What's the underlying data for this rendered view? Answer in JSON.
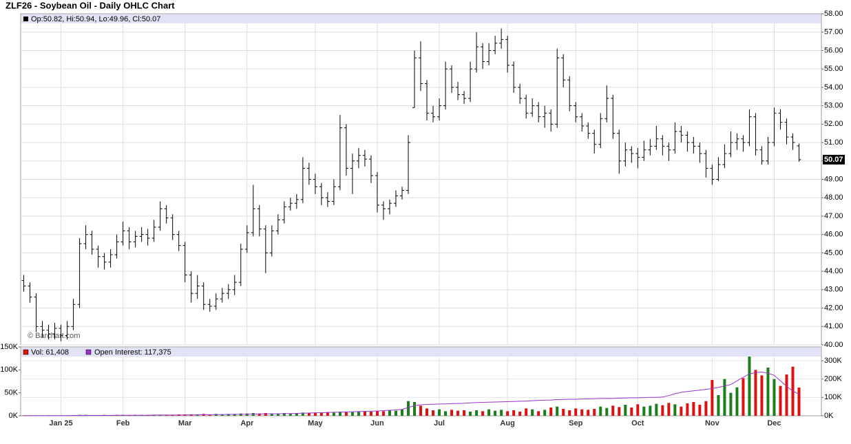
{
  "chart_data": [
    {
      "type": "ohlc",
      "title": "ZLF26 - Soybean Oil - Daily OHLC Chart",
      "legend_text": "Op:50.82, Hi:50.94, Lo:49.96, Cl:50.07",
      "last_label": "50.07",
      "watermark": "© Barchart.com",
      "color": "#000000",
      "open": [
        43.5,
        43.2,
        42.6,
        41.0,
        40.8,
        40.6,
        40.9,
        40.5,
        41.0,
        42.2,
        45.5,
        46.0,
        45.2,
        44.8,
        44.5,
        44.9,
        45.6,
        46.2,
        45.6,
        45.9,
        46.0,
        45.8,
        46.4,
        47.4,
        46.9,
        46.0,
        45.4,
        43.8,
        42.8,
        43.2,
        42.2,
        42.1,
        42.5,
        42.8,
        43.0,
        43.4,
        45.2,
        46.1,
        47.4,
        46.3,
        45.0,
        46.2,
        46.8,
        47.5,
        47.7,
        47.9,
        49.6,
        49.0,
        48.6,
        48.0,
        47.8,
        48.6,
        51.8,
        49.6,
        50.0,
        50.3,
        50.1,
        49.2,
        47.6,
        47.4,
        47.7,
        48.1,
        48.4,
        52.9,
        55.6,
        54.2,
        52.6,
        52.4,
        53.0,
        55.0,
        54.0,
        53.6,
        53.4,
        55.0,
        56.2,
        55.4,
        56.0,
        56.4,
        56.6,
        55.2,
        54.0,
        53.4,
        52.6,
        53.0,
        52.4,
        52.6,
        52.0,
        55.6,
        54.4,
        53.0,
        52.4,
        51.9,
        51.5,
        50.9,
        52.3,
        53.4,
        51.5,
        50.0,
        50.6,
        50.4,
        50.2,
        50.6,
        50.8,
        51.2,
        50.8,
        50.6,
        51.6,
        51.4,
        51.0,
        50.8,
        50.4,
        49.6,
        49.0,
        49.8,
        50.4,
        51.0,
        51.2,
        51.0,
        52.4,
        50.6,
        50.0,
        51.0,
        52.6,
        52.1,
        51.3,
        50.82
      ],
      "high": [
        43.8,
        43.4,
        42.8,
        41.3,
        41.1,
        41.2,
        41.1,
        41.3,
        42.5,
        45.8,
        46.5,
        46.2,
        45.4,
        45.0,
        45.2,
        46.0,
        46.7,
        46.4,
        46.2,
        46.4,
        46.3,
        46.8,
        47.8,
        47.6,
        47.1,
        46.2,
        45.6,
        44.0,
        43.8,
        43.4,
        42.5,
        42.8,
        43.1,
        43.3,
        43.8,
        45.5,
        46.5,
        48.7,
        47.6,
        46.5,
        46.5,
        47.1,
        47.8,
        48.0,
        48.2,
        50.2,
        49.9,
        49.3,
        48.8,
        48.3,
        49.0,
        52.5,
        52.0,
        50.4,
        50.7,
        50.6,
        50.3,
        49.4,
        47.8,
        47.9,
        48.4,
        48.6,
        51.4,
        56.0,
        56.5,
        54.4,
        53.0,
        53.4,
        55.4,
        55.2,
        54.3,
        53.8,
        55.4,
        57.0,
        56.4,
        56.4,
        56.8,
        57.2,
        56.8,
        55.4,
        54.2,
        53.6,
        53.4,
        53.2,
        53.0,
        52.8,
        56.1,
        55.8,
        54.6,
        53.2,
        52.6,
        52.1,
        51.7,
        52.6,
        54.1,
        53.6,
        51.7,
        51.0,
        50.8,
        50.7,
        51.1,
        51.2,
        51.9,
        51.4,
        51.0,
        52.1,
        51.9,
        51.6,
        51.3,
        51.0,
        50.6,
        49.8,
        50.2,
        50.9,
        51.6,
        51.5,
        51.4,
        52.8,
        52.6,
        50.8,
        51.3,
        52.9,
        52.8,
        52.3,
        51.5,
        50.94
      ],
      "low": [
        42.9,
        42.3,
        40.7,
        40.4,
        40.3,
        40.3,
        40.2,
        40.3,
        40.8,
        42.0,
        45.2,
        44.9,
        44.2,
        44.1,
        44.2,
        44.7,
        45.4,
        45.2,
        45.3,
        45.6,
        45.4,
        45.6,
        46.2,
        46.6,
        45.7,
        45.1,
        43.4,
        42.3,
        42.5,
        41.9,
        41.8,
        41.9,
        42.3,
        42.5,
        42.7,
        43.2,
        45.0,
        45.9,
        45.9,
        43.9,
        44.8,
        46.0,
        46.6,
        47.3,
        47.4,
        47.7,
        48.7,
        48.2,
        47.6,
        47.5,
        47.6,
        48.4,
        49.2,
        48.2,
        49.6,
        49.7,
        48.8,
        47.2,
        46.8,
        47.1,
        47.5,
        47.9,
        48.2,
        52.9,
        53.8,
        52.2,
        52.1,
        52.2,
        52.8,
        53.7,
        53.3,
        53.1,
        53.2,
        54.8,
        55.0,
        55.2,
        55.8,
        56.1,
        54.8,
        53.7,
        53.1,
        52.3,
        52.4,
        52.1,
        51.8,
        51.6,
        51.8,
        54.0,
        52.7,
        52.1,
        51.6,
        51.2,
        50.4,
        50.7,
        52.1,
        51.2,
        49.3,
        49.7,
        49.9,
        49.6,
        50.0,
        50.3,
        50.6,
        50.3,
        50.0,
        50.4,
        51.0,
        50.5,
        50.4,
        49.9,
        49.1,
        48.7,
        48.9,
        49.6,
        50.2,
        50.6,
        50.5,
        50.8,
        50.3,
        49.8,
        49.8,
        50.8,
        51.7,
        50.9,
        50.6,
        49.96
      ],
      "close": [
        43.2,
        42.6,
        41.0,
        40.8,
        40.6,
        40.9,
        40.5,
        41.0,
        42.2,
        45.5,
        46.0,
        45.2,
        44.8,
        44.5,
        44.9,
        45.6,
        46.2,
        45.6,
        45.9,
        46.0,
        45.8,
        46.4,
        47.4,
        46.9,
        46.0,
        45.4,
        43.8,
        42.8,
        43.2,
        42.2,
        42.1,
        42.5,
        42.8,
        43.0,
        43.4,
        45.2,
        46.1,
        47.4,
        46.3,
        45.0,
        46.2,
        46.8,
        47.5,
        47.7,
        47.9,
        49.6,
        49.0,
        48.6,
        48.0,
        47.8,
        48.6,
        51.8,
        49.6,
        50.0,
        50.3,
        50.1,
        49.2,
        47.6,
        47.4,
        47.7,
        48.1,
        48.4,
        51.0,
        55.6,
        54.2,
        52.6,
        52.4,
        53.0,
        55.0,
        54.0,
        53.6,
        53.4,
        55.0,
        56.2,
        55.4,
        56.0,
        56.4,
        56.6,
        55.2,
        54.0,
        53.4,
        52.6,
        53.0,
        52.4,
        52.6,
        52.0,
        55.6,
        54.4,
        53.0,
        52.4,
        51.9,
        51.5,
        50.9,
        52.3,
        53.4,
        51.5,
        50.0,
        50.6,
        50.4,
        50.2,
        50.6,
        50.8,
        51.2,
        50.8,
        50.6,
        51.6,
        51.4,
        51.0,
        50.8,
        50.4,
        49.6,
        49.0,
        49.8,
        50.4,
        51.0,
        51.2,
        51.0,
        52.4,
        50.6,
        50.0,
        51.0,
        52.6,
        52.1,
        51.3,
        51.0,
        50.07
      ],
      "ylim": [
        40,
        58
      ],
      "yticks": [
        {
          "value": 40,
          "label": "40.00"
        },
        {
          "value": 41,
          "label": "41.00"
        },
        {
          "value": 42,
          "label": "42.00"
        },
        {
          "value": 43,
          "label": "43.00"
        },
        {
          "value": 44,
          "label": "44.00"
        },
        {
          "value": 45,
          "label": "45.00"
        },
        {
          "value": 46,
          "label": "46.00"
        },
        {
          "value": 47,
          "label": "47.00"
        },
        {
          "value": 48,
          "label": "48.00"
        },
        {
          "value": 49,
          "label": "49.00"
        },
        {
          "value": 50,
          "label": "50.00"
        },
        {
          "value": 51,
          "label": "51.00"
        },
        {
          "value": 52,
          "label": "52.00"
        },
        {
          "value": 53,
          "label": "53.00"
        },
        {
          "value": 54,
          "label": "54.00"
        },
        {
          "value": 55,
          "label": "55.00"
        },
        {
          "value": 56,
          "label": "56.00"
        },
        {
          "value": 57,
          "label": "57.00"
        },
        {
          "value": 58,
          "label": "58.00"
        }
      ],
      "grid": true
    },
    {
      "type": "bar",
      "categories": [
        null,
        null,
        null,
        null,
        null,
        null,
        "Jan 25",
        null,
        null,
        null,
        null,
        null,
        null,
        null,
        null,
        null,
        "Feb",
        null,
        null,
        null,
        null,
        null,
        null,
        null,
        null,
        null,
        "Mar",
        null,
        null,
        null,
        null,
        null,
        null,
        null,
        null,
        null,
        "Apr",
        null,
        null,
        null,
        null,
        null,
        null,
        null,
        null,
        null,
        null,
        "May",
        null,
        null,
        null,
        null,
        null,
        null,
        null,
        null,
        null,
        "Jun",
        null,
        null,
        null,
        null,
        null,
        null,
        null,
        null,
        null,
        "Jul",
        null,
        null,
        null,
        null,
        null,
        null,
        null,
        null,
        null,
        null,
        "Aug",
        null,
        null,
        null,
        null,
        null,
        null,
        null,
        null,
        null,
        null,
        "Sep",
        null,
        null,
        null,
        null,
        null,
        null,
        null,
        null,
        null,
        "Oct",
        null,
        null,
        null,
        null,
        null,
        null,
        null,
        null,
        null,
        null,
        null,
        "Nov",
        null,
        null,
        null,
        null,
        null,
        null,
        null,
        null,
        null,
        "Dec",
        null,
        null,
        null,
        null
      ],
      "series": [
        {
          "name": "Vol: 61,408",
          "type": "bar",
          "color": "#dd1111",
          "up_color": "#1a7f1a",
          "values": [
            1000,
            1000,
            1000,
            1000,
            1000,
            1000,
            1000,
            1000,
            1000,
            2000,
            2000,
            1000,
            1000,
            2000,
            1000,
            2000,
            2000,
            1000,
            2000,
            2000,
            2000,
            2000,
            2000,
            2000,
            2000,
            3000,
            3000,
            3000,
            3000,
            4000,
            3000,
            4000,
            3000,
            4000,
            4000,
            5000,
            5000,
            6000,
            5000,
            6000,
            5000,
            5000,
            6000,
            5000,
            6000,
            7000,
            6000,
            7000,
            7000,
            8000,
            7000,
            9000,
            8000,
            8000,
            9000,
            10000,
            9000,
            11000,
            10000,
            12000,
            11000,
            14000,
            32000,
            30000,
            22000,
            16000,
            12000,
            14000,
            10000,
            13000,
            11000,
            12000,
            9000,
            12000,
            10000,
            14000,
            11000,
            13000,
            10000,
            12000,
            9000,
            16000,
            14000,
            10000,
            13000,
            18000,
            20000,
            15000,
            12000,
            16000,
            14000,
            13000,
            15000,
            20000,
            17000,
            22000,
            19000,
            24000,
            18000,
            25000,
            20000,
            22000,
            26000,
            23000,
            28000,
            25000,
            20000,
            27000,
            30000,
            24000,
            32000,
            78000,
            45000,
            80000,
            50000,
            62000,
            82000,
            129000,
            100000,
            88000,
            105000,
            80000,
            65000,
            90000,
            107000,
            61408
          ]
        },
        {
          "name": "Open Interest: 117,375",
          "type": "line",
          "color": "#9933cc",
          "axis": "y2",
          "values": [
            1000,
            1000,
            1000,
            1000,
            1000,
            1000,
            1000,
            1000,
            2000,
            2000,
            2000,
            2000,
            2000,
            2000,
            2000,
            3000,
            3000,
            3000,
            3000,
            3000,
            3000,
            4000,
            4000,
            4000,
            4000,
            4000,
            5000,
            5000,
            5000,
            6000,
            6000,
            6000,
            7000,
            7000,
            8000,
            8000,
            9000,
            9000,
            10000,
            10000,
            11000,
            11000,
            12000,
            12000,
            13000,
            14000,
            15000,
            16000,
            17000,
            18000,
            19000,
            20000,
            21000,
            22000,
            23000,
            24000,
            25000,
            26000,
            28000,
            30000,
            32000,
            35000,
            45000,
            55000,
            60000,
            62000,
            63000,
            64000,
            65000,
            66000,
            67000,
            68000,
            70000,
            72000,
            73000,
            74000,
            75000,
            76000,
            77000,
            78000,
            79000,
            80000,
            82000,
            84000,
            85000,
            86000,
            88000,
            89000,
            90000,
            90000,
            92000,
            92000,
            93000,
            94000,
            95000,
            94000,
            96000,
            97000,
            98000,
            98000,
            99000,
            100000,
            100000,
            102000,
            110000,
            120000,
            128000,
            132000,
            136000,
            140000,
            144000,
            148000,
            155000,
            162000,
            170000,
            190000,
            210000,
            228000,
            235000,
            238000,
            232000,
            220000,
            190000,
            160000,
            135000,
            117375
          ]
        }
      ],
      "ylim": [
        0,
        150000
      ],
      "yticks": [
        {
          "value": 0,
          "label": "0K"
        },
        {
          "value": 50000,
          "label": "50K"
        },
        {
          "value": 100000,
          "label": "100K"
        },
        {
          "value": 150000,
          "label": "150K"
        }
      ],
      "y2lim": [
        0,
        375000
      ],
      "y2ticks": [
        {
          "value": 0,
          "label": "0K"
        },
        {
          "value": 100000,
          "label": "100K"
        },
        {
          "value": 200000,
          "label": "200K"
        },
        {
          "value": 300000,
          "label": "300K"
        }
      ],
      "grid": true
    }
  ]
}
